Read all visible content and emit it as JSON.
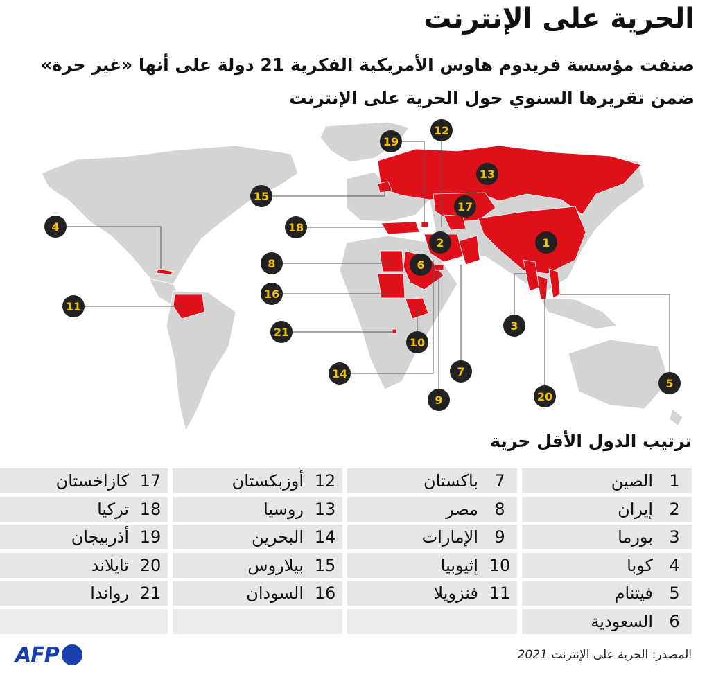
{
  "title": "الحرية على الإنترنت",
  "subtitle": {
    "line1": "صنفت مؤسسة فريدوم هاوس الأمريكية الفكرية 21 دولة على أنها «غير حرة»",
    "line2": "ضمن تقريرها السنوي حول الحرية على الإنترنت"
  },
  "ranking_title": "ترتيب الدول الأقل حرية",
  "countries": [
    {
      "rank": "1",
      "name": "الصين"
    },
    {
      "rank": "2",
      "name": "إيران"
    },
    {
      "rank": "3",
      "name": "بورما"
    },
    {
      "rank": "4",
      "name": "كوبا"
    },
    {
      "rank": "5",
      "name": "فيتنام"
    },
    {
      "rank": "6",
      "name": "السعودية"
    },
    {
      "rank": "7",
      "name": "باكستان"
    },
    {
      "rank": "8",
      "name": "مصر"
    },
    {
      "rank": "9",
      "name": "الإمارات"
    },
    {
      "rank": "10",
      "name": "إثيوبيا"
    },
    {
      "rank": "11",
      "name": "فنزويلا"
    },
    {
      "rank": "12",
      "name": "أوزبكستان"
    },
    {
      "rank": "13",
      "name": "روسيا"
    },
    {
      "rank": "14",
      "name": "البحرين"
    },
    {
      "rank": "15",
      "name": "بيلاروس"
    },
    {
      "rank": "16",
      "name": "السودان"
    },
    {
      "rank": "17",
      "name": "كازاخستان"
    },
    {
      "rank": "18",
      "name": "تركيا"
    },
    {
      "rank": "19",
      "name": "أذربيجان"
    },
    {
      "rank": "20",
      "name": "تايلاند"
    },
    {
      "rank": "21",
      "name": "رواندا"
    }
  ],
  "map_markers": [
    "1",
    "2",
    "3",
    "4",
    "5",
    "6",
    "7",
    "8",
    "9",
    "10",
    "11",
    "12",
    "13",
    "14",
    "15",
    "16",
    "17",
    "18",
    "19",
    "20",
    "21"
  ],
  "colors": {
    "highlight": "#e0101a",
    "land": "#d4d4d4",
    "marker_fill": "#222222",
    "marker_text": "#f2c200",
    "cell_bg": "#e6e6e6",
    "logo": "#1a3fae"
  },
  "source": {
    "label": "المصدر: الحرية على الإنترنت",
    "year": "2021"
  },
  "logo": {
    "text": "AFP"
  }
}
